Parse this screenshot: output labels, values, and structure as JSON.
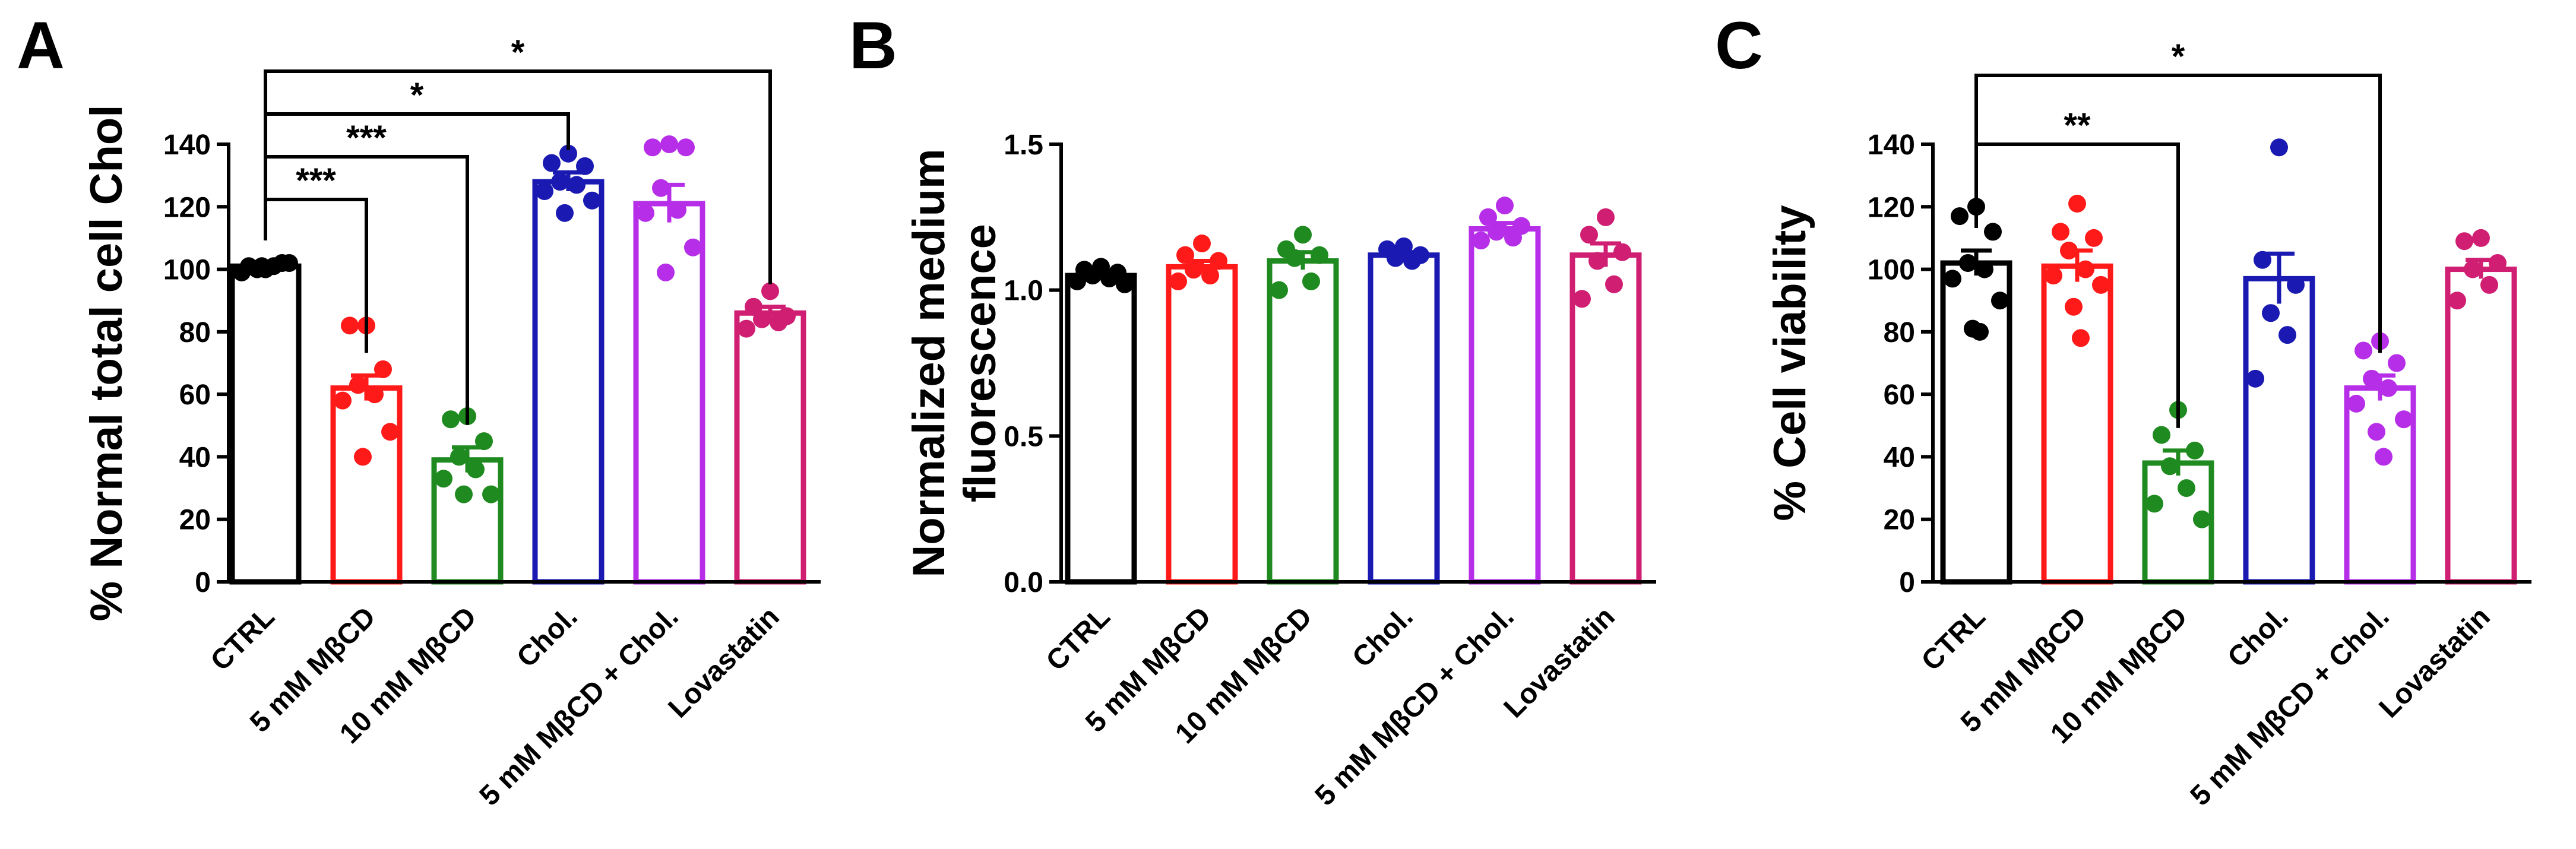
{
  "figure": {
    "panel_letters": [
      "A",
      "B",
      "C"
    ]
  },
  "chart_data": [
    {
      "type": "bar",
      "panel": "A",
      "title": "",
      "xlabel": "",
      "ylabel": "% Normal total cell Chol",
      "ylim": [
        0,
        140
      ],
      "yticks": [
        0,
        20,
        40,
        60,
        80,
        100,
        120,
        140
      ],
      "categories": [
        "CTRL",
        "5 mM MβCD",
        "10 mM MβCD",
        "Chol.",
        "5 mM MβCD + Chol.",
        "Lovastatin"
      ],
      "colors": [
        "#000000",
        "#ff1a1a",
        "#1f8a1f",
        "#1a1ab3",
        "#b62ee8",
        "#d01f73"
      ],
      "values": [
        101,
        62,
        39,
        128,
        121,
        86
      ],
      "sem": [
        1,
        4,
        4,
        3,
        6,
        2
      ],
      "points": [
        [
          100,
          101,
          102,
          100,
          101,
          99,
          102,
          101
        ],
        [
          82,
          82,
          68,
          63,
          60,
          58,
          48,
          40
        ],
        [
          53,
          52,
          45,
          40,
          36,
          33,
          28,
          28
        ],
        [
          137,
          134,
          133,
          128,
          127,
          125,
          122,
          118
        ],
        [
          140,
          139,
          139,
          126,
          119,
          118,
          107,
          99
        ],
        [
          93,
          88,
          85,
          84,
          83,
          81
        ]
      ],
      "significance": [
        {
          "from": 0,
          "to": 1,
          "label": "***"
        },
        {
          "from": 0,
          "to": 2,
          "label": "***"
        },
        {
          "from": 0,
          "to": 3,
          "label": "*"
        },
        {
          "from": 0,
          "to": 5,
          "label": "*"
        }
      ]
    },
    {
      "type": "bar",
      "panel": "B",
      "title": "",
      "xlabel": "",
      "ylabel": "Normalized medium fluorescence",
      "ylabel_lines": [
        "Normalized medium",
        "fluorescence"
      ],
      "ylim": [
        0,
        1.5
      ],
      "yticks": [
        0.0,
        0.5,
        1.0,
        1.5
      ],
      "ytick_labels": [
        "0.0",
        "0.5",
        "1.0",
        "1.5"
      ],
      "categories": [
        "CTRL",
        "5 mM MβCD",
        "10 mM MβCD",
        "Chol.",
        "5 mM MβCD + Chol.",
        "Lovastatin"
      ],
      "colors": [
        "#000000",
        "#ff1a1a",
        "#1f8a1f",
        "#1a1ab3",
        "#b62ee8",
        "#d01f73"
      ],
      "values": [
        1.05,
        1.08,
        1.1,
        1.12,
        1.21,
        1.12
      ],
      "sem": [
        0.01,
        0.02,
        0.03,
        0.01,
        0.02,
        0.04
      ],
      "points": [
        [
          1.08,
          1.07,
          1.06,
          1.05,
          1.04,
          1.03,
          1.02
        ],
        [
          1.16,
          1.12,
          1.1,
          1.07,
          1.05,
          1.03
        ],
        [
          1.19,
          1.14,
          1.12,
          1.11,
          1.03,
          1.0
        ],
        [
          1.15,
          1.14,
          1.12,
          1.11,
          1.1
        ],
        [
          1.29,
          1.25,
          1.22,
          1.2,
          1.18,
          1.17
        ],
        [
          1.25,
          1.19,
          1.13,
          1.1,
          1.02,
          0.97
        ]
      ],
      "significance": []
    },
    {
      "type": "bar",
      "panel": "C",
      "title": "",
      "xlabel": "",
      "ylabel": "% Cell viability",
      "ylim": [
        0,
        140
      ],
      "yticks": [
        0,
        20,
        40,
        60,
        80,
        100,
        120,
        140
      ],
      "categories": [
        "CTRL",
        "5 mM MβCD",
        "10 mM MβCD",
        "Chol.",
        "5 mM MβCD + Chol.",
        "Lovastatin"
      ],
      "colors": [
        "#000000",
        "#ff1a1a",
        "#1f8a1f",
        "#1a1ab3",
        "#b62ee8",
        "#d01f73"
      ],
      "values": [
        102,
        101,
        38,
        97,
        62,
        100
      ],
      "sem": [
        4,
        5,
        4,
        8,
        4,
        3
      ],
      "points": [
        [
          120,
          117,
          112,
          102,
          100,
          97,
          90,
          81,
          80
        ],
        [
          121,
          112,
          110,
          106,
          100,
          98,
          95,
          88,
          78
        ],
        [
          55,
          47,
          42,
          37,
          30,
          25,
          20
        ],
        [
          139,
          103,
          95,
          86,
          79,
          65
        ],
        [
          77,
          74,
          70,
          65,
          62,
          57,
          52,
          48,
          40
        ],
        [
          110,
          109,
          102,
          100,
          95,
          90
        ]
      ],
      "significance": [
        {
          "from": 0,
          "to": 2,
          "label": "**"
        },
        {
          "from": 0,
          "to": 4,
          "label": "*"
        }
      ]
    }
  ]
}
